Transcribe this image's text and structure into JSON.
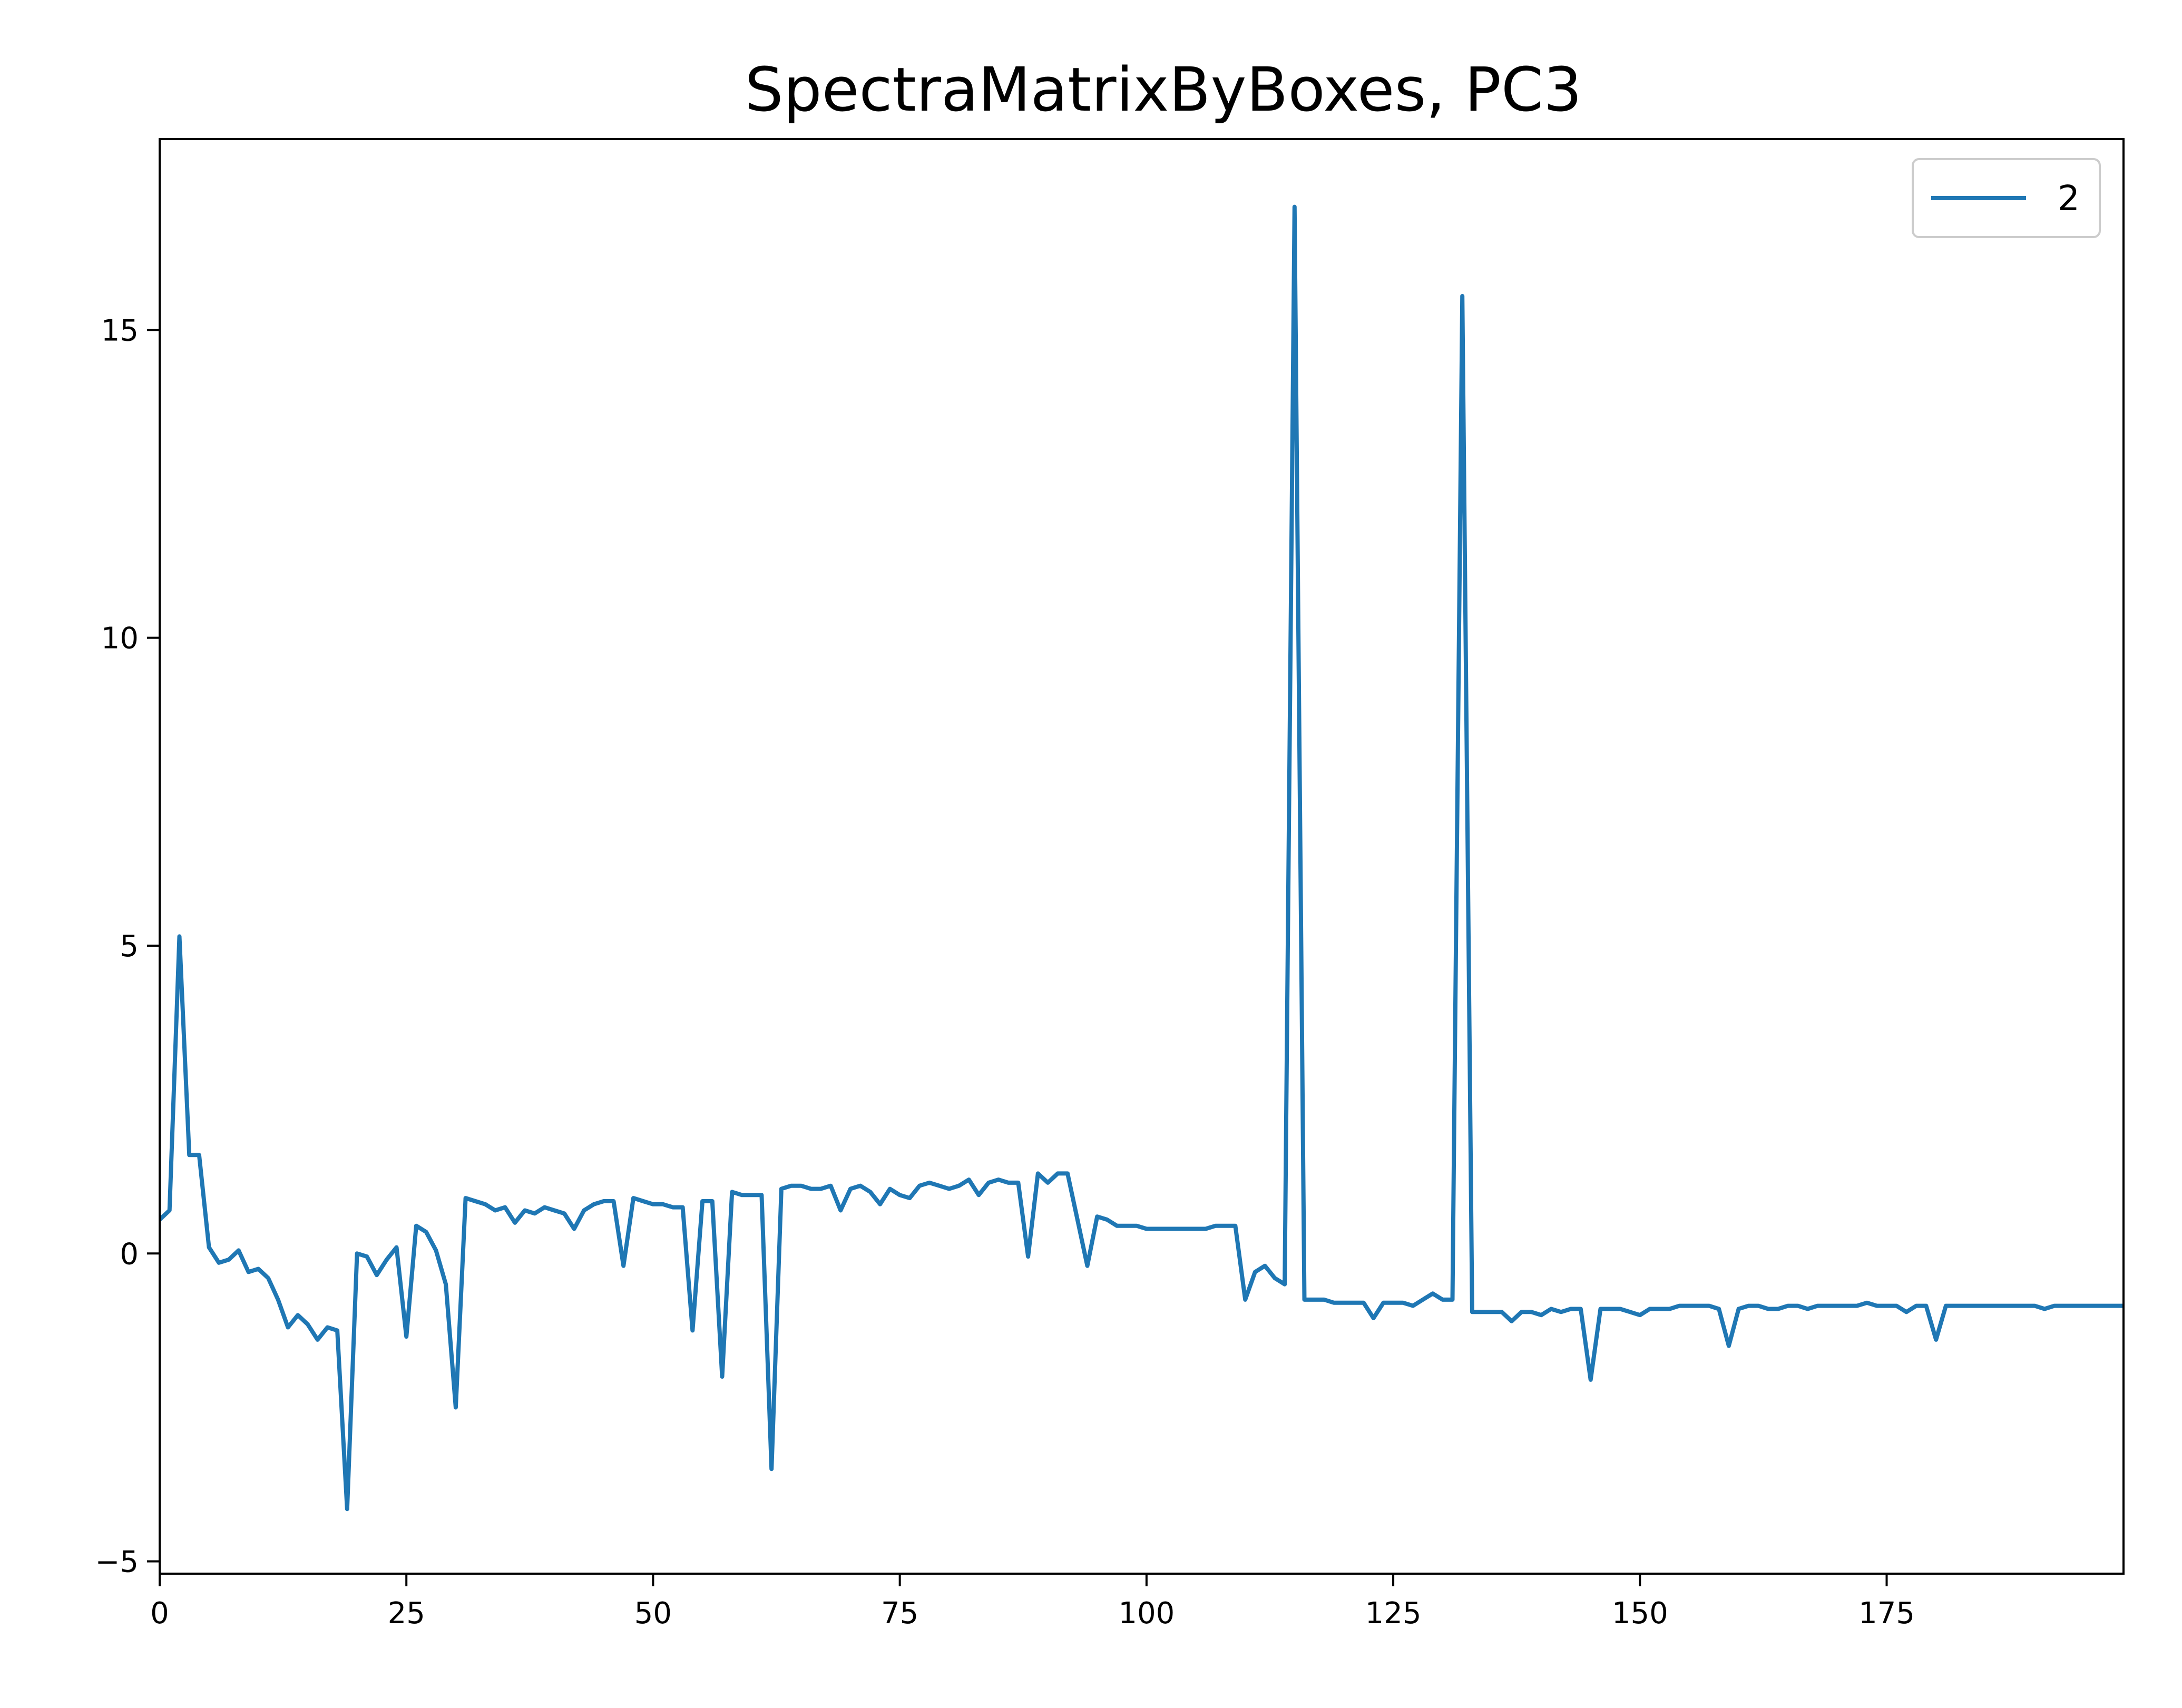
{
  "chart_data": {
    "type": "line",
    "title": "SpectraMatrixByBoxes, PC3",
    "xlabel": "",
    "ylabel": "",
    "xlim": [
      0,
      199
    ],
    "ylim": [
      -5.2,
      18.1
    ],
    "xticks": [
      0,
      25,
      50,
      75,
      100,
      125,
      150,
      175
    ],
    "yticks": [
      -5,
      0,
      5,
      10,
      15
    ],
    "xtick_labels": [
      "0",
      "25",
      "50",
      "75",
      "100",
      "125",
      "150",
      "175"
    ],
    "ytick_labels": [
      "−5",
      "0",
      "5",
      "10",
      "15"
    ],
    "grid": false,
    "legend_position": "top-right",
    "series": [
      {
        "name": "2",
        "color": "#1f77b4",
        "values": [
          0.55,
          0.7,
          5.15,
          1.6,
          1.6,
          0.1,
          -0.15,
          -0.1,
          0.05,
          -0.3,
          -0.25,
          -0.4,
          -0.75,
          -1.2,
          -1.0,
          -1.15,
          -1.4,
          -1.2,
          -1.25,
          -4.15,
          0.0,
          -0.05,
          -0.35,
          -0.1,
          0.1,
          -1.35,
          0.45,
          0.35,
          0.05,
          -0.5,
          -2.5,
          0.9,
          0.85,
          0.8,
          0.7,
          0.75,
          0.5,
          0.7,
          0.65,
          0.75,
          0.7,
          0.65,
          0.4,
          0.7,
          0.8,
          0.85,
          0.85,
          -0.2,
          0.9,
          0.85,
          0.8,
          0.8,
          0.75,
          0.75,
          -1.25,
          0.85,
          0.85,
          -2.0,
          1.0,
          0.95,
          0.95,
          0.95,
          -3.5,
          1.05,
          1.1,
          1.1,
          1.05,
          1.05,
          1.1,
          0.7,
          1.05,
          1.1,
          1.0,
          0.8,
          1.05,
          0.95,
          0.9,
          1.1,
          1.15,
          1.1,
          1.05,
          1.1,
          1.2,
          0.95,
          1.15,
          1.2,
          1.15,
          1.15,
          -0.05,
          1.3,
          1.15,
          1.3,
          1.3,
          0.55,
          -0.2,
          0.6,
          0.55,
          0.45,
          0.45,
          0.45,
          0.4,
          0.4,
          0.4,
          0.4,
          0.4,
          0.4,
          0.4,
          0.45,
          0.45,
          0.45,
          -0.75,
          -0.3,
          -0.2,
          -0.4,
          -0.5,
          17.0,
          -0.75,
          -0.75,
          -0.75,
          -0.8,
          -0.8,
          -0.8,
          -0.8,
          -1.05,
          -0.8,
          -0.8,
          -0.8,
          -0.85,
          -0.75,
          -0.65,
          -0.75,
          -0.75,
          15.55,
          -0.95,
          -0.95,
          -0.95,
          -0.95,
          -1.1,
          -0.95,
          -0.95,
          -1.0,
          -0.9,
          -0.95,
          -0.9,
          -0.9,
          -2.05,
          -0.9,
          -0.9,
          -0.9,
          -0.95,
          -1.0,
          -0.9,
          -0.9,
          -0.9,
          -0.85,
          -0.85,
          -0.85,
          -0.85,
          -0.9,
          -1.5,
          -0.9,
          -0.85,
          -0.85,
          -0.9,
          -0.9,
          -0.85,
          -0.85,
          -0.9,
          -0.85,
          -0.85,
          -0.85,
          -0.85,
          -0.85,
          -0.8,
          -0.85,
          -0.85,
          -0.85,
          -0.95,
          -0.85,
          -0.85,
          -1.4,
          -0.85,
          -0.85,
          -0.85,
          -0.85,
          -0.85,
          -0.85,
          -0.85,
          -0.85,
          -0.85,
          -0.85,
          -0.9,
          -0.85,
          -0.85,
          -0.85,
          -0.85,
          -0.85,
          -0.85,
          -0.85,
          -0.85,
          -0.85,
          -0.85,
          -0.85,
          -0.85,
          -0.85,
          -0.85,
          -0.85,
          -0.85,
          -0.85,
          -0.85,
          -0.85
        ]
      }
    ]
  }
}
